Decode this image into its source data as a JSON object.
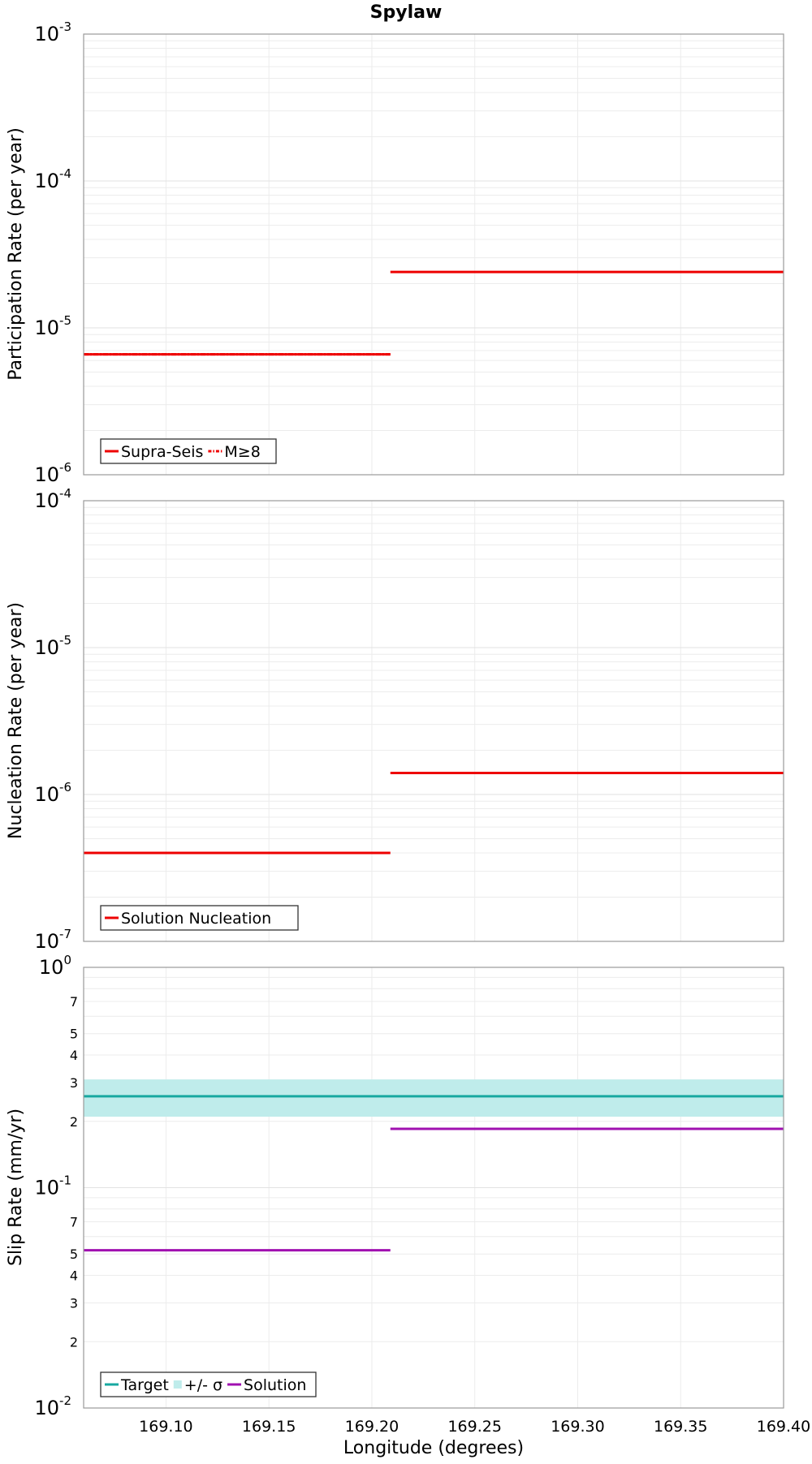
{
  "title": "Spylaw",
  "x_axis": {
    "label": "Longitude (degrees)",
    "range": [
      169.06,
      169.4
    ],
    "ticks": [
      169.1,
      169.15,
      169.2,
      169.25,
      169.3,
      169.35,
      169.4
    ],
    "tick_labels": [
      "169.10",
      "169.15",
      "169.20",
      "169.25",
      "169.30",
      "169.35",
      "169.40"
    ]
  },
  "colors": {
    "red": "#ee0000",
    "teal": "#17a8a0",
    "teal_band": "#bfeceb",
    "magenta": "#a010b0",
    "grid": "#ececec",
    "frame": "#9a9a9a"
  },
  "chart_data": [
    {
      "type": "line",
      "panel": "participation",
      "ylabel": "Participation Rate (per year)",
      "yscale": "log",
      "ylim": [
        1e-06,
        0.001
      ],
      "y_tick_labels": [
        {
          "value": 0.001,
          "base": "10",
          "exp": "-3"
        },
        {
          "value": 0.0001,
          "base": "10",
          "exp": "-4"
        },
        {
          "value": 1e-05,
          "base": "10",
          "exp": "-5"
        },
        {
          "value": 1e-06,
          "base": "10",
          "exp": "-6"
        }
      ],
      "minor_tick_labels": [],
      "grid": true,
      "legend_position": "bottom-left",
      "legend": [
        {
          "label": "Supra-Seis",
          "style": "solid",
          "color": "#ee0000"
        },
        {
          "label": "M≥8",
          "style": "dashdot",
          "color": "#ee0000"
        }
      ],
      "series": [
        {
          "name": "Supra-Seis",
          "style": "solid",
          "color": "#ee0000",
          "segments": [
            {
              "x": [
                169.06,
                169.209
              ],
              "y": 6.6e-06
            },
            {
              "x": [
                169.209,
                169.4
              ],
              "y": 2.4e-05
            }
          ]
        },
        {
          "name": "M≥8",
          "style": "dashdot",
          "color": "#ee0000",
          "segments": [
            {
              "x": [
                169.06,
                169.209
              ],
              "y": 6.6e-06
            }
          ]
        }
      ]
    },
    {
      "type": "line",
      "panel": "nucleation",
      "ylabel": "Nucleation Rate (per year)",
      "yscale": "log",
      "ylim": [
        1e-07,
        0.0001
      ],
      "y_tick_labels": [
        {
          "value": 0.0001,
          "base": "10",
          "exp": "-4"
        },
        {
          "value": 1e-05,
          "base": "10",
          "exp": "-5"
        },
        {
          "value": 1e-06,
          "base": "10",
          "exp": "-6"
        },
        {
          "value": 1e-07,
          "base": "10",
          "exp": "-7"
        }
      ],
      "minor_tick_labels": [],
      "grid": true,
      "legend_position": "bottom-left",
      "legend": [
        {
          "label": "Solution Nucleation",
          "style": "solid",
          "color": "#ee0000"
        }
      ],
      "series": [
        {
          "name": "Solution Nucleation",
          "style": "solid",
          "color": "#ee0000",
          "segments": [
            {
              "x": [
                169.06,
                169.209
              ],
              "y": 4e-07
            },
            {
              "x": [
                169.209,
                169.4
              ],
              "y": 1.4e-06
            }
          ]
        }
      ]
    },
    {
      "type": "line",
      "panel": "slip",
      "ylabel": "Slip Rate (mm/yr)",
      "yscale": "log",
      "ylim": [
        0.01,
        1.0
      ],
      "y_tick_labels": [
        {
          "value": 1.0,
          "base": "10",
          "exp": "0"
        },
        {
          "value": 0.1,
          "base": "10",
          "exp": "-1"
        },
        {
          "value": 0.01,
          "base": "10",
          "exp": "-2"
        }
      ],
      "minor_tick_labels": [
        {
          "value": 0.7,
          "label": "7"
        },
        {
          "value": 0.5,
          "label": "5"
        },
        {
          "value": 0.4,
          "label": "4"
        },
        {
          "value": 0.3,
          "label": "3"
        },
        {
          "value": 0.2,
          "label": "2"
        },
        {
          "value": 0.07,
          "label": "7"
        },
        {
          "value": 0.05,
          "label": "5"
        },
        {
          "value": 0.04,
          "label": "4"
        },
        {
          "value": 0.03,
          "label": "3"
        },
        {
          "value": 0.02,
          "label": "2"
        }
      ],
      "grid": true,
      "legend_position": "bottom-left",
      "legend": [
        {
          "label": "Target",
          "style": "solid",
          "color": "#17a8a0"
        },
        {
          "label": "+/- σ",
          "style": "band",
          "color": "#bfeceb"
        },
        {
          "label": "Solution",
          "style": "solid",
          "color": "#a010b0"
        }
      ],
      "bands": [
        {
          "name": "+/- σ",
          "color": "#bfeceb",
          "x": [
            169.06,
            169.4
          ],
          "y_low": 0.21,
          "y_high": 0.31
        }
      ],
      "series": [
        {
          "name": "Target",
          "style": "solid",
          "color": "#17a8a0",
          "segments": [
            {
              "x": [
                169.06,
                169.4
              ],
              "y": 0.26
            }
          ]
        },
        {
          "name": "Solution",
          "style": "solid",
          "color": "#a010b0",
          "segments": [
            {
              "x": [
                169.06,
                169.209
              ],
              "y": 0.052
            },
            {
              "x": [
                169.209,
                169.4
              ],
              "y": 0.185
            }
          ]
        }
      ]
    }
  ]
}
